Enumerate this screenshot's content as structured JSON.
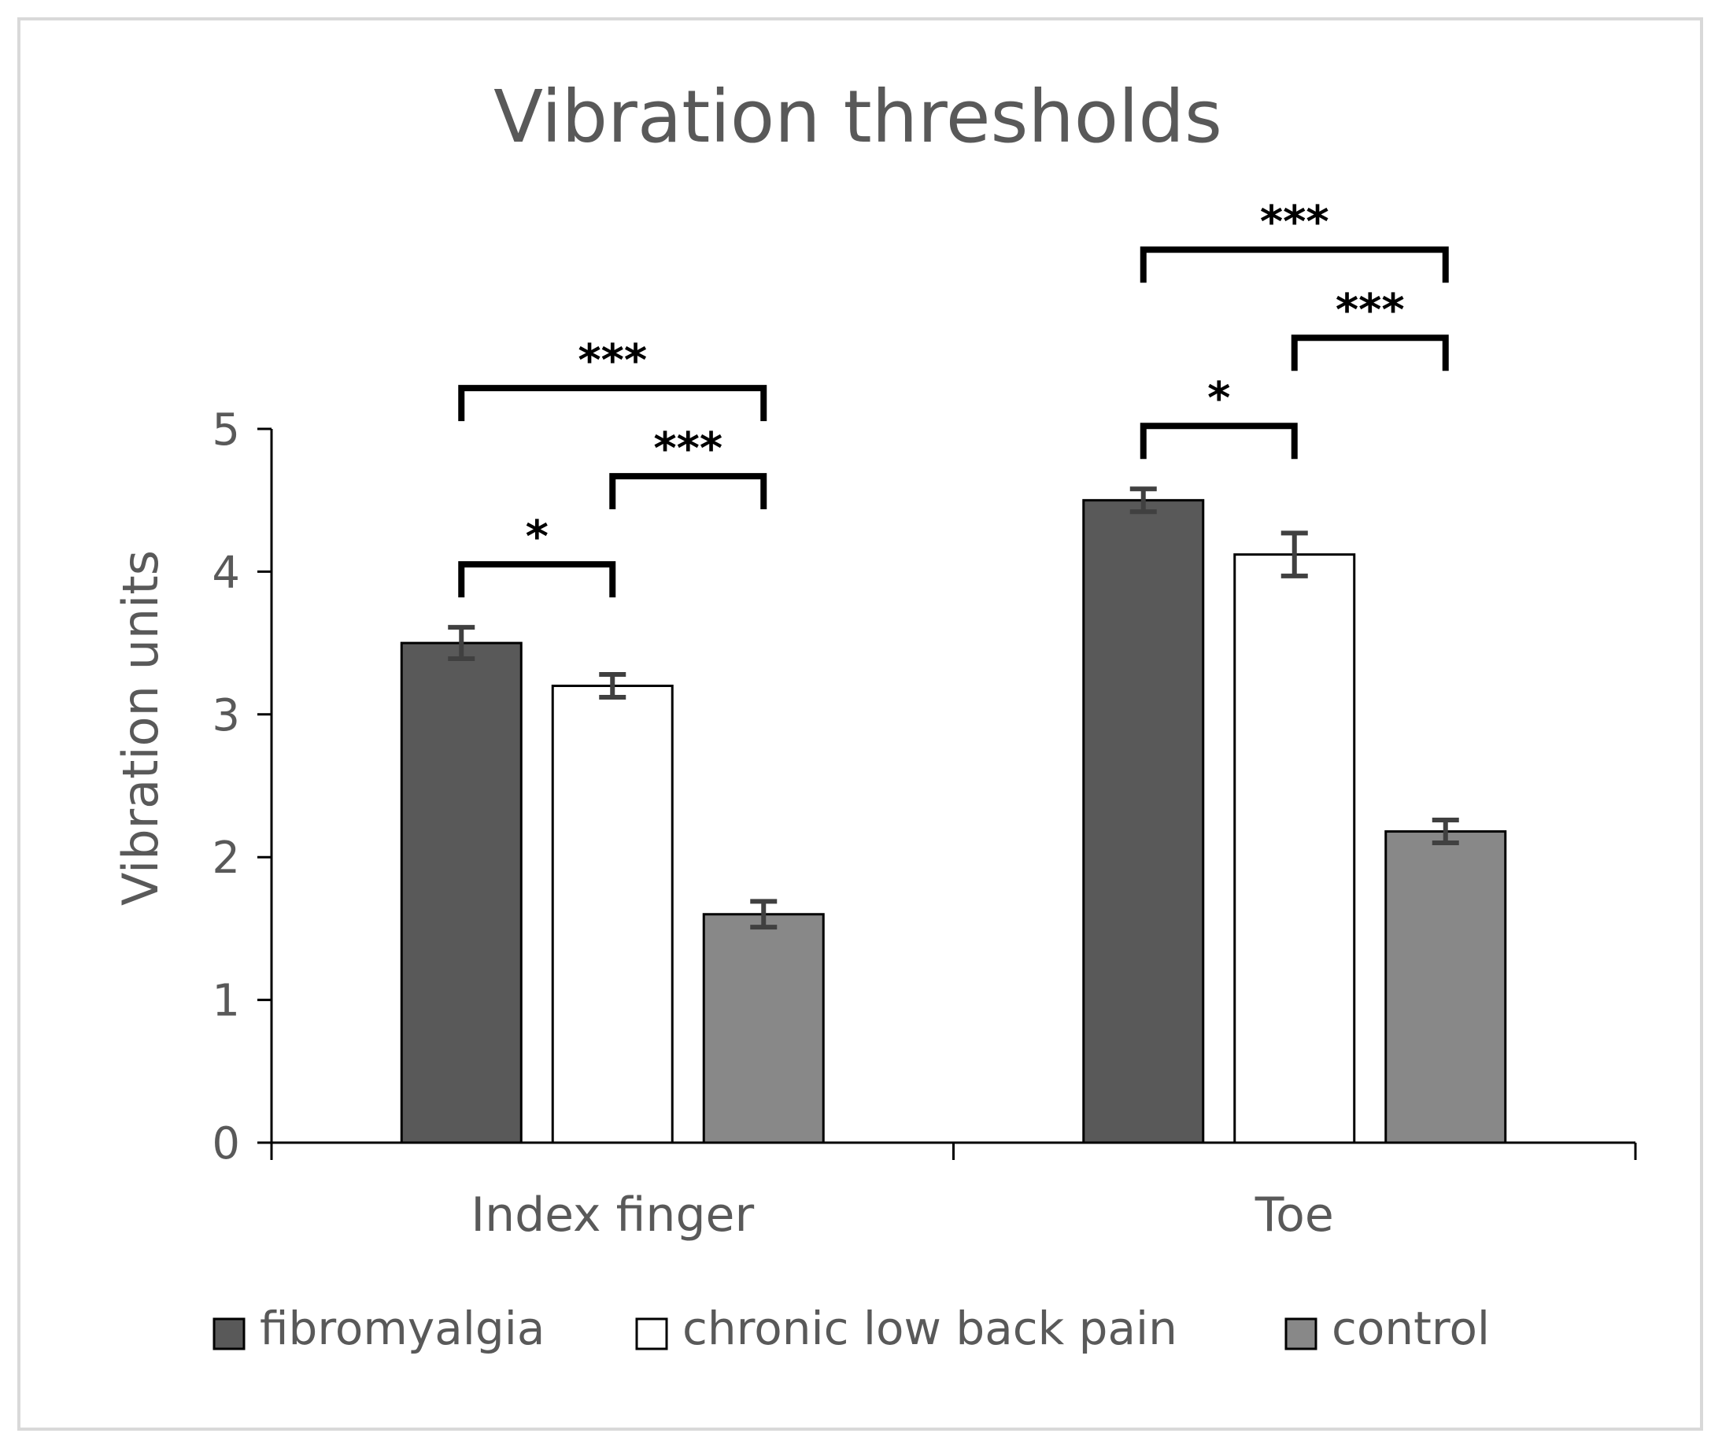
{
  "chart_data": {
    "type": "bar",
    "title": "Vibration thresholds",
    "xlabel": "",
    "ylabel": "Vibration units",
    "ylim": [
      0,
      5
    ],
    "yticks": [
      0,
      1,
      2,
      3,
      4,
      5
    ],
    "categories": [
      "Index finger",
      "Toe"
    ],
    "series": [
      {
        "name": "fibromyalgia",
        "color": "#595959",
        "values": [
          3.5,
          4.5
        ],
        "errors": [
          0.11,
          0.08
        ]
      },
      {
        "name": "chronic low back pain",
        "color": "#ffffff",
        "values": [
          3.2,
          4.12
        ],
        "errors": [
          0.08,
          0.15
        ]
      },
      {
        "name": "control",
        "color": "#888888",
        "values": [
          1.6,
          2.18
        ],
        "errors": [
          0.09,
          0.08
        ]
      }
    ],
    "significance": [
      {
        "category": 0,
        "from": 0,
        "to": 1,
        "label": "*"
      },
      {
        "category": 0,
        "from": 1,
        "to": 2,
        "label": "***"
      },
      {
        "category": 0,
        "from": 0,
        "to": 2,
        "label": "***"
      },
      {
        "category": 1,
        "from": 0,
        "to": 1,
        "label": "*"
      },
      {
        "category": 1,
        "from": 1,
        "to": 2,
        "label": "***"
      },
      {
        "category": 1,
        "from": 0,
        "to": 2,
        "label": "***"
      }
    ],
    "legend_position": "bottom"
  }
}
